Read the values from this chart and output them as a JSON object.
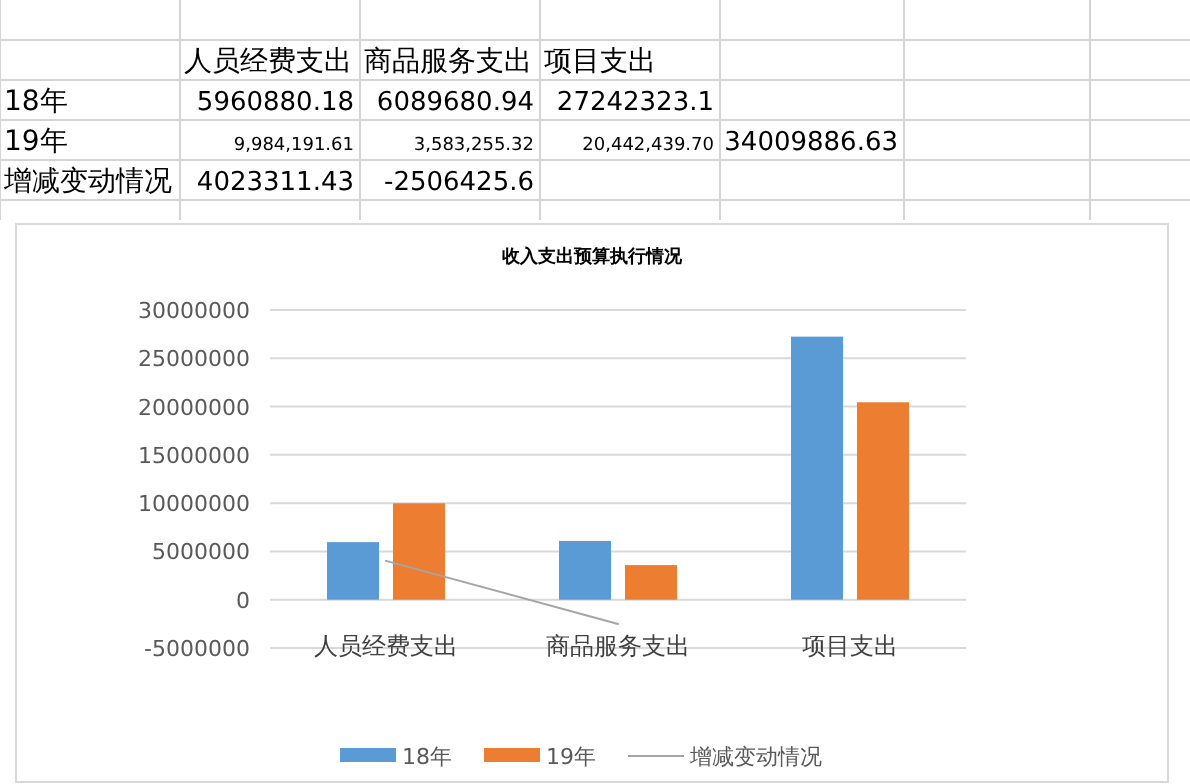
{
  "chart_data": {
    "type": "bar",
    "title": "收入支出预算执行情况",
    "categories": [
      "人员经费支出",
      "商品服务支出",
      "项目支出"
    ],
    "series": [
      {
        "name": "18年",
        "color": "#5b9bd5",
        "values": [
          5960880.18,
          6089680.94,
          27242323.1
        ]
      },
      {
        "name": "19年",
        "color": "#ed7d31",
        "values": [
          9984191.61,
          3583255.32,
          20442439.7
        ]
      },
      {
        "name": "增减变动情况",
        "type": "line",
        "color": "#a5a5a5",
        "values": [
          4023311.43,
          -2506425.6,
          null
        ]
      }
    ],
    "ylim": [
      -5000000,
      30000000
    ],
    "yticks": [
      -5000000,
      0,
      5000000,
      10000000,
      15000000,
      20000000,
      25000000,
      30000000
    ],
    "grid": "y",
    "legend": "bottom",
    "annotations": [
      "人员经费支出",
      "商品服务支出",
      "项目支出",
      "18年",
      "5960880.18",
      "6089680.94",
      "27242323.1",
      "19年",
      "9,984,191.61",
      "3,583,255.32",
      "20,442,439.70",
      "34009886.63",
      "增减变动情况",
      "4023311.43",
      "-2506425.6"
    ]
  }
}
